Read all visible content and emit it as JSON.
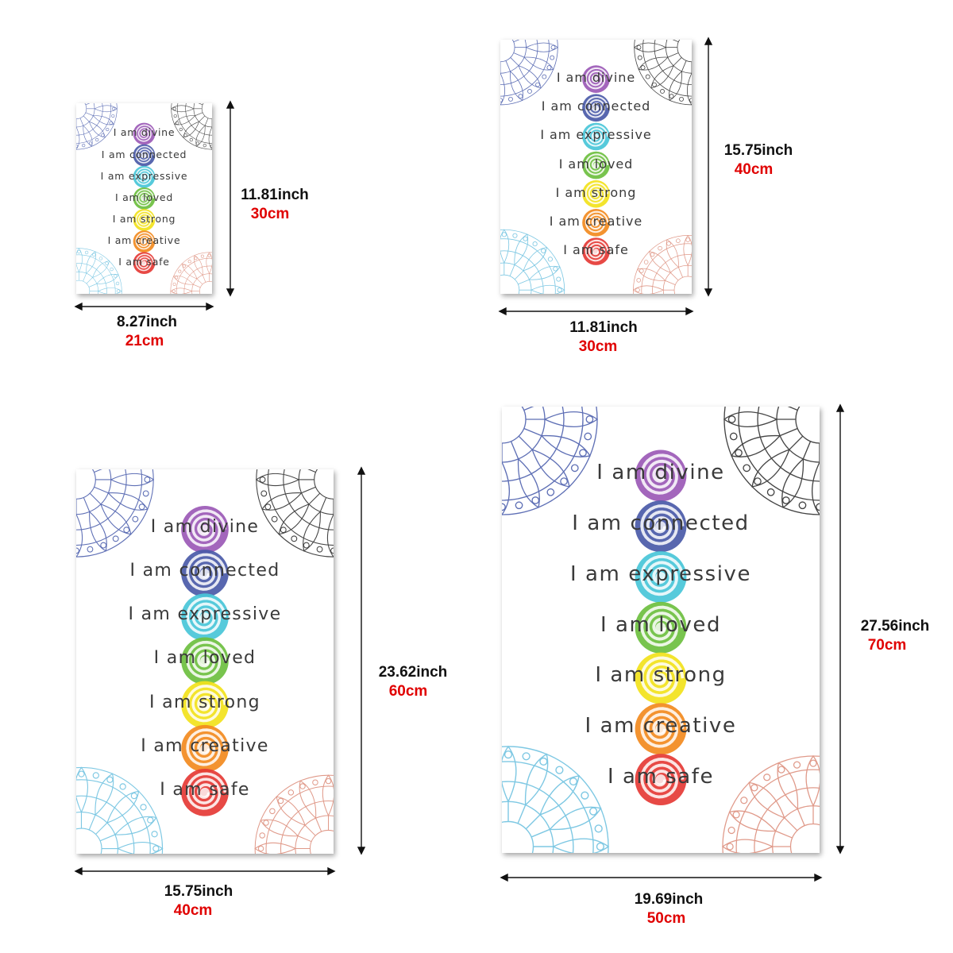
{
  "affirmations": [
    "I am divine",
    "I am connected",
    "I am expressive",
    "I am loved",
    "I am strong",
    "I am creative",
    "I am safe"
  ],
  "chakra_colors": [
    "#9b59b6",
    "#4a5aa8",
    "#48c6d8",
    "#6cbf3f",
    "#f2e21b",
    "#f28a1e",
    "#e53935"
  ],
  "mandala_colors": {
    "top_left": "#5e6fb5",
    "top_right": "#444444",
    "bottom_left": "#7ec8e3",
    "bottom_right": "#e09a8a"
  },
  "posters": [
    {
      "width_inch": "8.27inch",
      "width_cm": "21cm",
      "height_inch": "11.81inch",
      "height_cm": "30cm"
    },
    {
      "width_inch": "11.81inch",
      "width_cm": "30cm",
      "height_inch": "15.75inch",
      "height_cm": "40cm"
    },
    {
      "width_inch": "15.75inch",
      "width_cm": "40cm",
      "height_inch": "23.62inch",
      "height_cm": "60cm"
    },
    {
      "width_inch": "19.69inch",
      "width_cm": "50cm",
      "height_inch": "27.56inch",
      "height_cm": "70cm"
    }
  ]
}
